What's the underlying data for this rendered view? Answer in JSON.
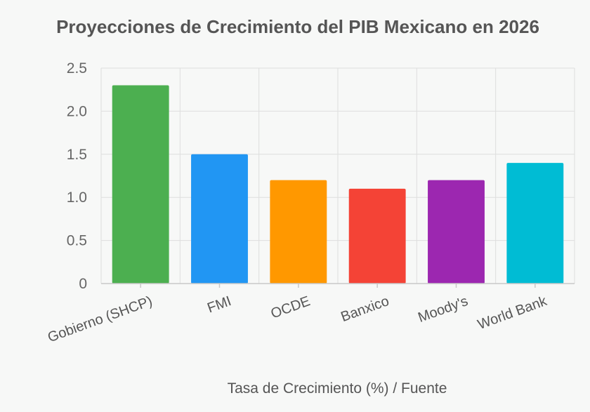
{
  "chart_data": {
    "type": "bar",
    "title": "Proyecciones de Crecimiento del PIB Mexicano en 2026",
    "xlabel": "Tasa de Crecimiento (%) / Fuente",
    "ylabel": "",
    "categories": [
      "Gobierno (SHCP)",
      "FMI",
      "OCDE",
      "Banxico",
      "Moody's",
      "World Bank"
    ],
    "values": [
      2.3,
      1.5,
      1.2,
      1.1,
      1.2,
      1.4
    ],
    "colors": [
      "#4caf50",
      "#2196f3",
      "#ff9800",
      "#f44336",
      "#9c27b0",
      "#00bcd4"
    ],
    "ylim": [
      0,
      2.5
    ],
    "yticks": [
      "0",
      "0.5",
      "1.0",
      "1.5",
      "2.0",
      "2.5"
    ],
    "grid": true,
    "legend": "none"
  }
}
